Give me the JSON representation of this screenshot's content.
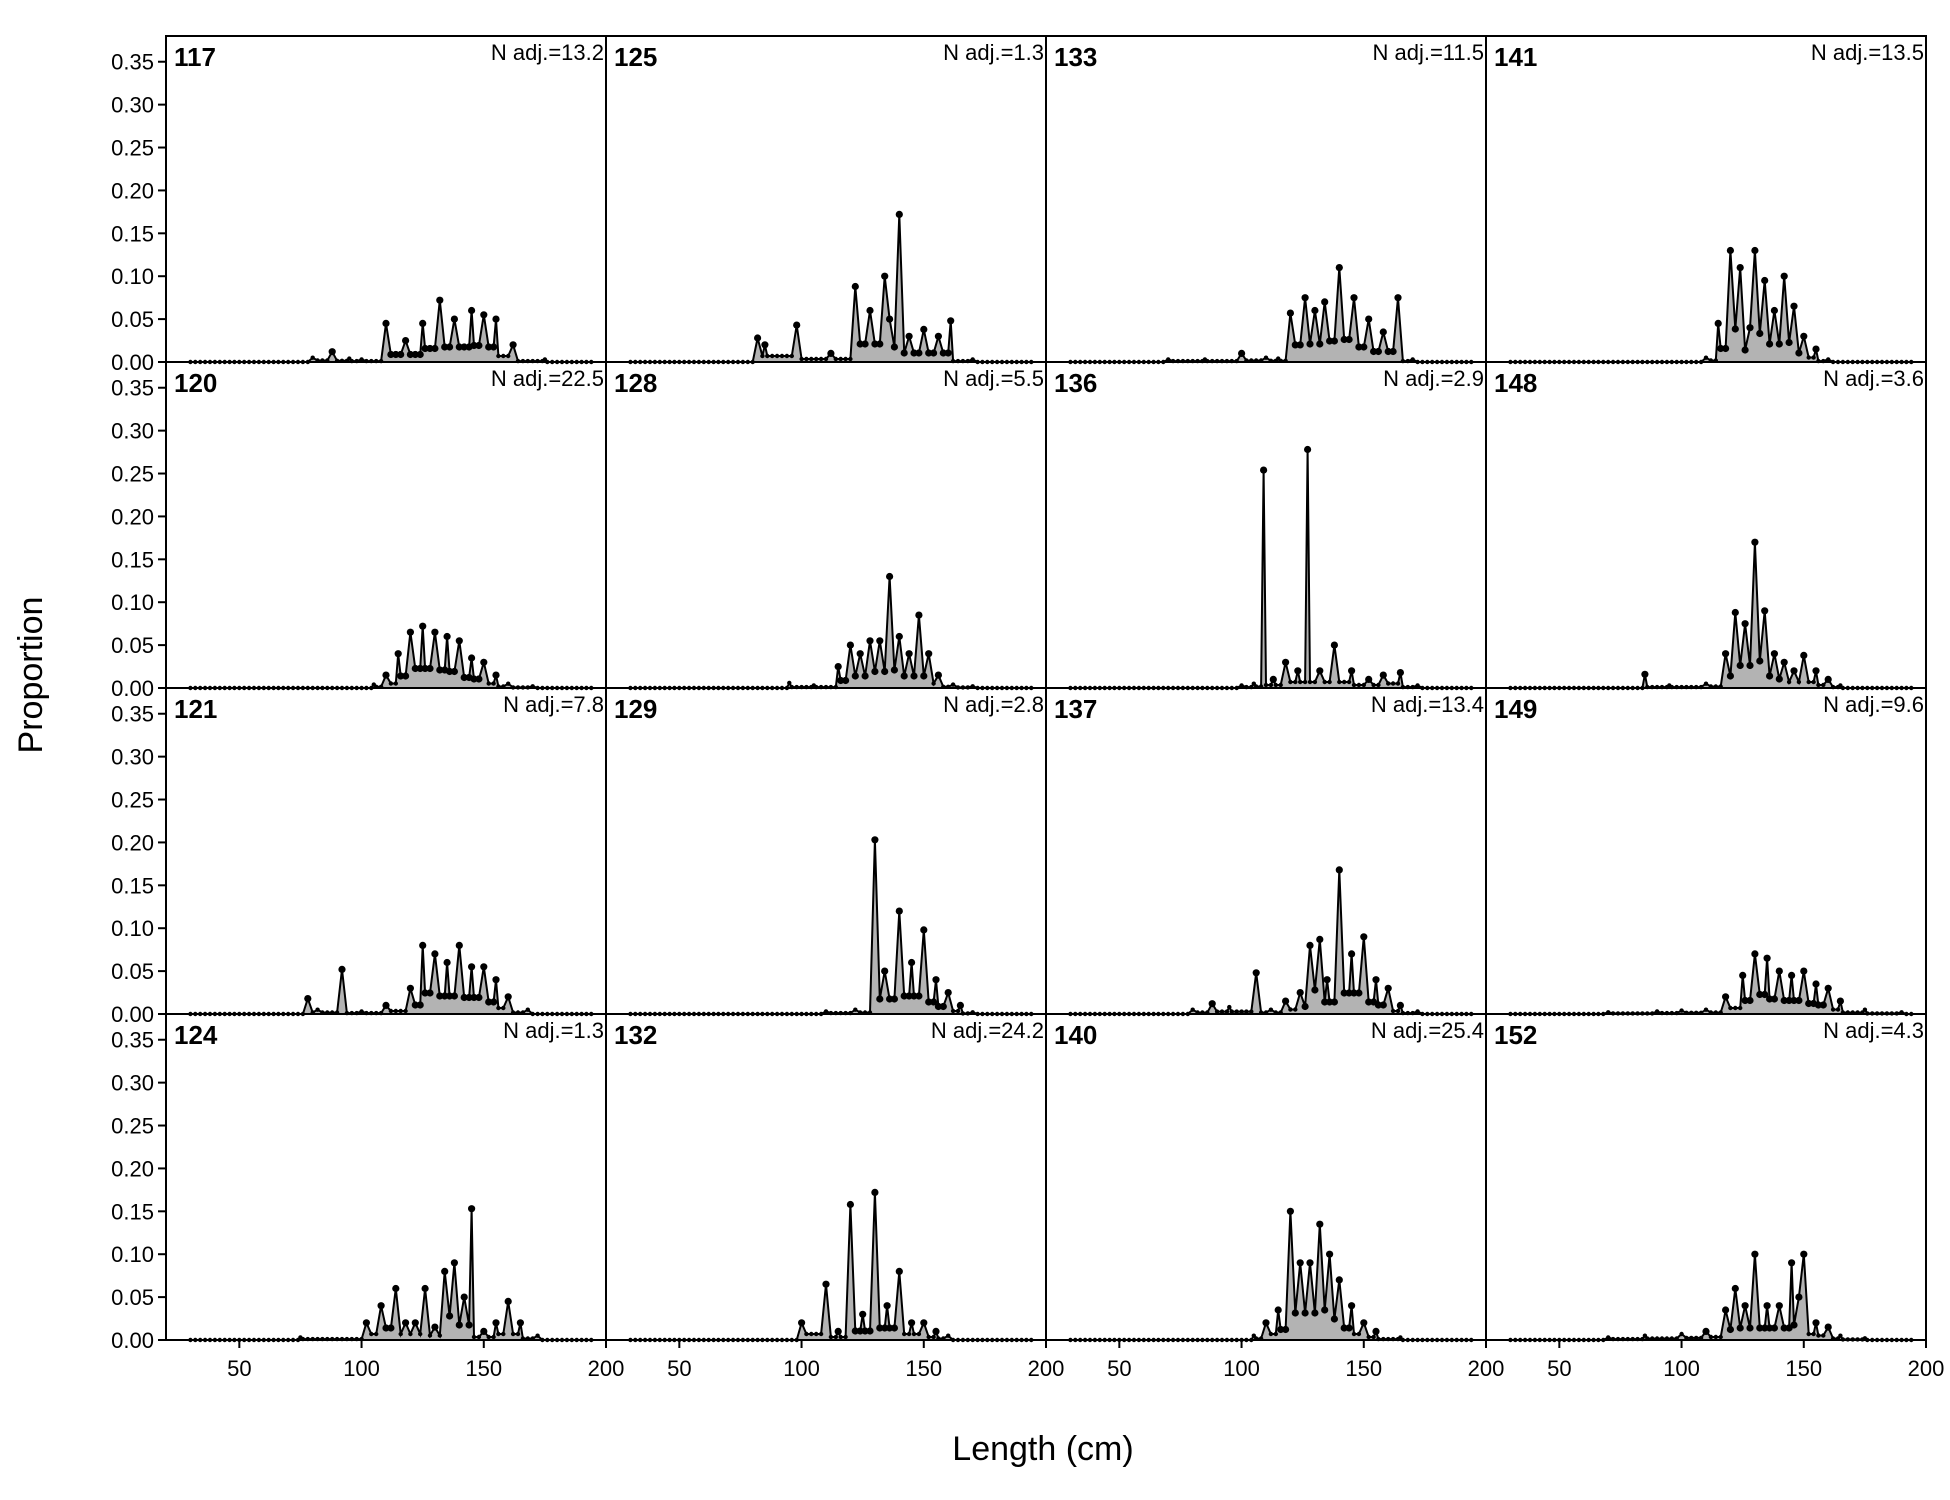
{
  "chart_data": {
    "type": "area",
    "xlabel": "Length (cm)",
    "ylabel": "Proportion",
    "xlim": [
      20,
      200
    ],
    "ylim": [
      0,
      0.38
    ],
    "xticks": [
      50,
      100,
      150,
      200
    ],
    "yticks": [
      0.0,
      0.05,
      0.1,
      0.15,
      0.2,
      0.25,
      0.3,
      0.35
    ],
    "xtick_labels": [
      "50",
      "100",
      "150",
      "200"
    ],
    "ytick_labels": [
      "0.00",
      "0.05",
      "0.10",
      "0.15",
      "0.20",
      "0.25",
      "0.30",
      "0.35"
    ],
    "grid": false,
    "layout": "4x4 panels, shared axes",
    "panels": [
      {
        "id": "117",
        "n_label": "N adj.=13.2",
        "peaks": [
          [
            80,
            0.005
          ],
          [
            88,
            0.012
          ],
          [
            95,
            0.004
          ],
          [
            100,
            0.003
          ],
          [
            110,
            0.045
          ],
          [
            118,
            0.025
          ],
          [
            125,
            0.045
          ],
          [
            132,
            0.072
          ],
          [
            138,
            0.05
          ],
          [
            145,
            0.06
          ],
          [
            150,
            0.055
          ],
          [
            155,
            0.05
          ],
          [
            162,
            0.02
          ],
          [
            175,
            0.003
          ]
        ]
      },
      {
        "id": "125",
        "n_label": "N adj.=1.3",
        "peaks": [
          [
            82,
            0.028
          ],
          [
            85,
            0.02
          ],
          [
            98,
            0.043
          ],
          [
            112,
            0.01
          ],
          [
            122,
            0.088
          ],
          [
            128,
            0.06
          ],
          [
            134,
            0.1
          ],
          [
            136,
            0.05
          ],
          [
            140,
            0.172
          ],
          [
            144,
            0.03
          ],
          [
            150,
            0.038
          ],
          [
            156,
            0.03
          ],
          [
            161,
            0.048
          ],
          [
            170,
            0.003
          ]
        ]
      },
      {
        "id": "133",
        "n_label": "N adj.=11.5",
        "peaks": [
          [
            70,
            0.003
          ],
          [
            85,
            0.003
          ],
          [
            100,
            0.01
          ],
          [
            110,
            0.005
          ],
          [
            115,
            0.004
          ],
          [
            120,
            0.057
          ],
          [
            126,
            0.075
          ],
          [
            130,
            0.06
          ],
          [
            134,
            0.07
          ],
          [
            140,
            0.11
          ],
          [
            146,
            0.075
          ],
          [
            152,
            0.05
          ],
          [
            158,
            0.035
          ],
          [
            164,
            0.075
          ],
          [
            170,
            0.003
          ]
        ]
      },
      {
        "id": "141",
        "n_label": "N adj.=13.5",
        "peaks": [
          [
            110,
            0.005
          ],
          [
            115,
            0.045
          ],
          [
            120,
            0.13
          ],
          [
            124,
            0.11
          ],
          [
            128,
            0.04
          ],
          [
            130,
            0.13
          ],
          [
            134,
            0.095
          ],
          [
            138,
            0.06
          ],
          [
            142,
            0.1
          ],
          [
            146,
            0.065
          ],
          [
            150,
            0.03
          ],
          [
            155,
            0.015
          ],
          [
            160,
            0.003
          ]
        ]
      },
      {
        "id": "120",
        "n_label": "N adj.=22.5",
        "peaks": [
          [
            105,
            0.004
          ],
          [
            110,
            0.015
          ],
          [
            115,
            0.04
          ],
          [
            120,
            0.065
          ],
          [
            125,
            0.072
          ],
          [
            130,
            0.065
          ],
          [
            135,
            0.06
          ],
          [
            140,
            0.055
          ],
          [
            145,
            0.035
          ],
          [
            150,
            0.03
          ],
          [
            155,
            0.015
          ],
          [
            160,
            0.005
          ],
          [
            170,
            0.002
          ]
        ]
      },
      {
        "id": "128",
        "n_label": "N adj.=5.5",
        "peaks": [
          [
            95,
            0.006
          ],
          [
            105,
            0.003
          ],
          [
            115,
            0.025
          ],
          [
            120,
            0.05
          ],
          [
            124,
            0.04
          ],
          [
            128,
            0.055
          ],
          [
            132,
            0.055
          ],
          [
            136,
            0.13
          ],
          [
            140,
            0.06
          ],
          [
            144,
            0.04
          ],
          [
            148,
            0.085
          ],
          [
            152,
            0.04
          ],
          [
            156,
            0.015
          ],
          [
            162,
            0.004
          ],
          [
            170,
            0.002
          ]
        ]
      },
      {
        "id": "136",
        "n_label": "N adj.=2.9",
        "peaks": [
          [
            100,
            0.003
          ],
          [
            105,
            0.005
          ],
          [
            109,
            0.254
          ],
          [
            113,
            0.01
          ],
          [
            118,
            0.03
          ],
          [
            123,
            0.02
          ],
          [
            127,
            0.278
          ],
          [
            132,
            0.02
          ],
          [
            138,
            0.05
          ],
          [
            145,
            0.02
          ],
          [
            152,
            0.01
          ],
          [
            158,
            0.015
          ],
          [
            165,
            0.018
          ],
          [
            172,
            0.003
          ]
        ]
      },
      {
        "id": "148",
        "n_label": "N adj.=3.6",
        "peaks": [
          [
            85,
            0.016
          ],
          [
            95,
            0.003
          ],
          [
            110,
            0.005
          ],
          [
            118,
            0.04
          ],
          [
            122,
            0.088
          ],
          [
            126,
            0.075
          ],
          [
            130,
            0.17
          ],
          [
            134,
            0.09
          ],
          [
            138,
            0.04
          ],
          [
            142,
            0.03
          ],
          [
            146,
            0.02
          ],
          [
            150,
            0.038
          ],
          [
            155,
            0.02
          ],
          [
            160,
            0.01
          ],
          [
            165,
            0.003
          ]
        ]
      },
      {
        "id": "121",
        "n_label": "N adj.=7.8",
        "peaks": [
          [
            78,
            0.018
          ],
          [
            82,
            0.005
          ],
          [
            92,
            0.052
          ],
          [
            100,
            0.003
          ],
          [
            110,
            0.01
          ],
          [
            120,
            0.03
          ],
          [
            125,
            0.08
          ],
          [
            130,
            0.07
          ],
          [
            135,
            0.06
          ],
          [
            140,
            0.08
          ],
          [
            145,
            0.055
          ],
          [
            150,
            0.055
          ],
          [
            155,
            0.04
          ],
          [
            160,
            0.02
          ],
          [
            168,
            0.005
          ]
        ]
      },
      {
        "id": "129",
        "n_label": "N adj.=2.8",
        "peaks": [
          [
            110,
            0.003
          ],
          [
            122,
            0.005
          ],
          [
            130,
            0.203
          ],
          [
            134,
            0.05
          ],
          [
            140,
            0.12
          ],
          [
            145,
            0.06
          ],
          [
            150,
            0.098
          ],
          [
            155,
            0.04
          ],
          [
            160,
            0.025
          ],
          [
            165,
            0.01
          ],
          [
            170,
            0.002
          ]
        ]
      },
      {
        "id": "137",
        "n_label": "N adj.=13.4",
        "peaks": [
          [
            80,
            0.005
          ],
          [
            88,
            0.012
          ],
          [
            95,
            0.008
          ],
          [
            106,
            0.048
          ],
          [
            112,
            0.005
          ],
          [
            118,
            0.015
          ],
          [
            124,
            0.025
          ],
          [
            128,
            0.08
          ],
          [
            132,
            0.087
          ],
          [
            135,
            0.04
          ],
          [
            140,
            0.168
          ],
          [
            145,
            0.07
          ],
          [
            150,
            0.09
          ],
          [
            155,
            0.04
          ],
          [
            160,
            0.03
          ],
          [
            165,
            0.01
          ],
          [
            172,
            0.003
          ]
        ]
      },
      {
        "id": "149",
        "n_label": "N adj.=9.6",
        "peaks": [
          [
            70,
            0.002
          ],
          [
            90,
            0.003
          ],
          [
            100,
            0.004
          ],
          [
            110,
            0.005
          ],
          [
            118,
            0.02
          ],
          [
            125,
            0.045
          ],
          [
            130,
            0.07
          ],
          [
            135,
            0.065
          ],
          [
            140,
            0.05
          ],
          [
            145,
            0.045
          ],
          [
            150,
            0.05
          ],
          [
            155,
            0.035
          ],
          [
            160,
            0.03
          ],
          [
            165,
            0.015
          ],
          [
            175,
            0.005
          ],
          [
            190,
            0.002
          ]
        ]
      },
      {
        "id": "124",
        "n_label": "N adj.=1.3",
        "peaks": [
          [
            75,
            0.003
          ],
          [
            102,
            0.02
          ],
          [
            108,
            0.04
          ],
          [
            114,
            0.06
          ],
          [
            118,
            0.02
          ],
          [
            122,
            0.02
          ],
          [
            126,
            0.06
          ],
          [
            130,
            0.015
          ],
          [
            134,
            0.08
          ],
          [
            138,
            0.09
          ],
          [
            142,
            0.05
          ],
          [
            145,
            0.153
          ],
          [
            150,
            0.01
          ],
          [
            155,
            0.02
          ],
          [
            160,
            0.045
          ],
          [
            165,
            0.02
          ],
          [
            172,
            0.005
          ]
        ]
      },
      {
        "id": "132",
        "n_label": "N adj.=24.2",
        "peaks": [
          [
            100,
            0.02
          ],
          [
            110,
            0.065
          ],
          [
            115,
            0.01
          ],
          [
            120,
            0.158
          ],
          [
            125,
            0.03
          ],
          [
            130,
            0.172
          ],
          [
            135,
            0.04
          ],
          [
            140,
            0.08
          ],
          [
            145,
            0.02
          ],
          [
            150,
            0.02
          ],
          [
            155,
            0.01
          ],
          [
            160,
            0.005
          ]
        ]
      },
      {
        "id": "140",
        "n_label": "N adj.=25.4",
        "peaks": [
          [
            105,
            0.005
          ],
          [
            110,
            0.02
          ],
          [
            115,
            0.035
          ],
          [
            120,
            0.15
          ],
          [
            124,
            0.09
          ],
          [
            128,
            0.09
          ],
          [
            132,
            0.135
          ],
          [
            136,
            0.1
          ],
          [
            140,
            0.07
          ],
          [
            145,
            0.04
          ],
          [
            150,
            0.02
          ],
          [
            155,
            0.01
          ],
          [
            165,
            0.003
          ]
        ]
      },
      {
        "id": "152",
        "n_label": "N adj.=4.3",
        "peaks": [
          [
            70,
            0.003
          ],
          [
            85,
            0.005
          ],
          [
            100,
            0.007
          ],
          [
            110,
            0.01
          ],
          [
            118,
            0.035
          ],
          [
            122,
            0.06
          ],
          [
            126,
            0.04
          ],
          [
            130,
            0.1
          ],
          [
            135,
            0.04
          ],
          [
            140,
            0.04
          ],
          [
            145,
            0.09
          ],
          [
            148,
            0.05
          ],
          [
            150,
            0.1
          ],
          [
            155,
            0.02
          ],
          [
            160,
            0.015
          ],
          [
            165,
            0.005
          ],
          [
            175,
            0.002
          ]
        ]
      }
    ]
  }
}
